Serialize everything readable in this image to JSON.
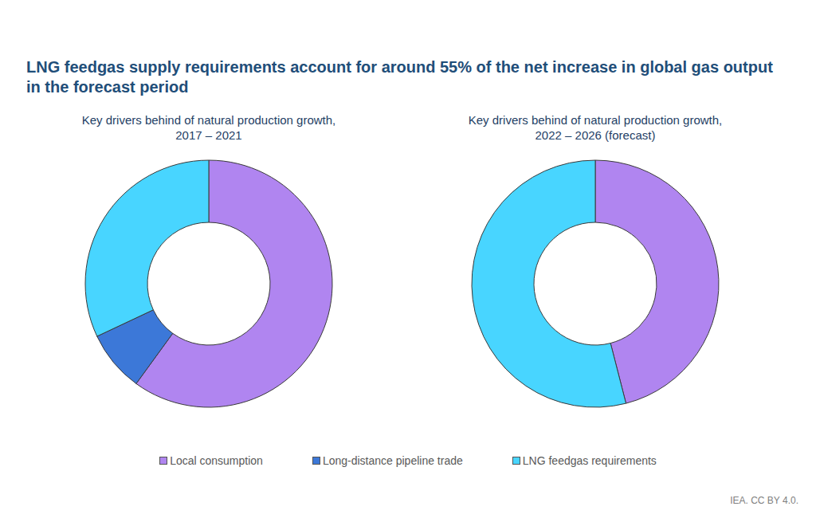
{
  "title": "LNG feedgas supply requirements account for around 55% of the net increase in global gas output in the forecast period",
  "source": "IEA. CC BY 4.0.",
  "legend": "bottom",
  "chart_data": [
    {
      "type": "pie",
      "title": "Key drivers behind of natural production growth, 2017 – 2021",
      "categories": [
        "Local consumption",
        "Long-distance pipeline trade",
        "LNG feedgas requirements"
      ],
      "values": [
        60,
        8,
        32
      ],
      "colors": [
        "#b085f0",
        "#3c78d8",
        "#48d5ff"
      ]
    },
    {
      "type": "pie",
      "title": "Key drivers behind of natural production growth, 2022 – 2026 (forecast)",
      "categories": [
        "Local consumption",
        "LNG feedgas requirements"
      ],
      "values": [
        46,
        54
      ],
      "colors": [
        "#b085f0",
        "#48d5ff"
      ]
    }
  ]
}
